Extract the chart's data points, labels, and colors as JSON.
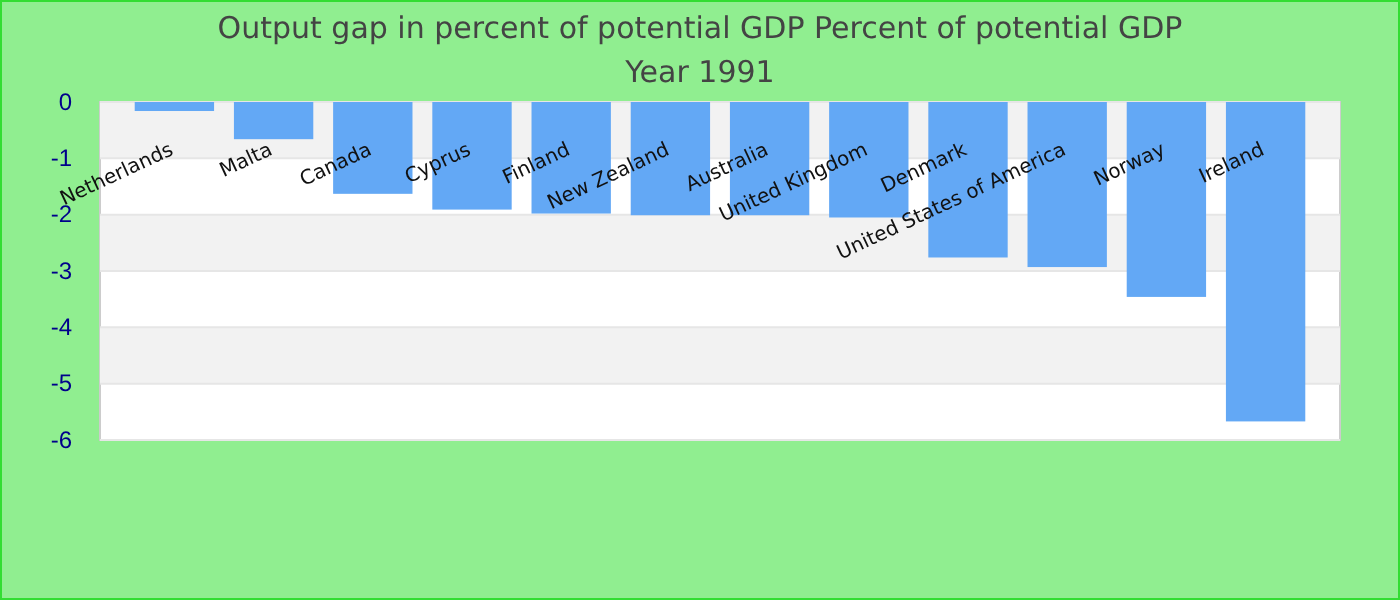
{
  "chart_data": {
    "type": "bar",
    "title": "Output gap in percent of potential GDP  Percent of potential GDP",
    "subtitle": "Year 1991",
    "categories": [
      "Netherlands",
      "Malta",
      "Canada",
      "Cyprus",
      "Finland",
      "New Zealand",
      "Australia",
      "United Kingdom",
      "Denmark",
      "United States of America",
      "Norway",
      "Ireland"
    ],
    "values": [
      -0.16,
      -0.66,
      -1.63,
      -1.91,
      -1.98,
      -2.01,
      -2.01,
      -2.05,
      -2.76,
      -2.93,
      -3.46,
      -5.67
    ],
    "color": "#63a8f5",
    "ylim": [
      -6,
      0
    ],
    "yticks": [
      0,
      -1,
      -2,
      -3,
      -4,
      -5,
      -6
    ],
    "grid": true
  }
}
